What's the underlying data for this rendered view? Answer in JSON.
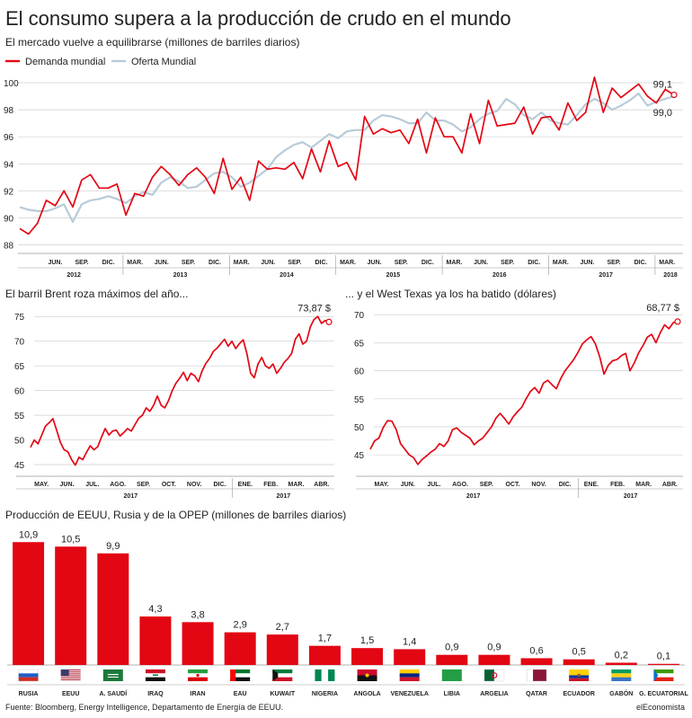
{
  "header": {
    "title": "El consumo supera a la producción de crudo en el mundo",
    "subtitle": "El mercado vuelve a equilibrarse (millones de barriles diarios)"
  },
  "colors": {
    "red": "#e30613",
    "blue": "#b8cbd8",
    "grid": "#cfcfcf",
    "ink": "#222222"
  },
  "chart_data": [
    {
      "type": "line",
      "subtitle": "El mercado vuelve a equilibrarse (millones de barriles diarios)",
      "yticks": [
        88,
        90,
        92,
        94,
        96,
        98,
        100
      ],
      "ylim": [
        87.5,
        100.8
      ],
      "x_month_labels": [
        "JUN.",
        "SEP.",
        "DIC.",
        "MAR.",
        "JUN.",
        "SEP.",
        "DIC.",
        "MAR.",
        "JUN.",
        "SEP.",
        "DIC.",
        "MAR.",
        "JUN.",
        "SEP.",
        "DIC.",
        "MAR.",
        "JUN.",
        "SEP.",
        "DIC.",
        "MAR.",
        "JUN.",
        "SEP.",
        "DIC.",
        "MAR."
      ],
      "x_year_labels": [
        "2012",
        "2013",
        "2014",
        "2015",
        "2016",
        "2017",
        "2018"
      ],
      "series": [
        {
          "name": "Demanda mundial",
          "color": "#e30613",
          "values": [
            89.2,
            88.8,
            89.6,
            91.3,
            90.9,
            92.0,
            90.8,
            92.8,
            93.2,
            92.2,
            92.2,
            92.5,
            90.2,
            91.8,
            91.6,
            93.0,
            93.8,
            93.2,
            92.4,
            93.2,
            93.7,
            93.0,
            91.8,
            94.4,
            92.1,
            93.0,
            91.3,
            94.2,
            93.6,
            93.7,
            93.6,
            94.1,
            92.9,
            95.1,
            93.4,
            95.7,
            93.8,
            94.1,
            92.8,
            97.5,
            96.2,
            96.6,
            96.3,
            96.5,
            95.5,
            97.3,
            94.8,
            97.4,
            96.0,
            96.0,
            94.8,
            97.7,
            95.5,
            98.7,
            96.8,
            96.9,
            97.0,
            98.2,
            96.2,
            97.4,
            97.5,
            96.5,
            98.5,
            97.2,
            97.8,
            100.4,
            97.8,
            99.6,
            98.9,
            99.4,
            99.9,
            99.0,
            98.5,
            99.5,
            99.1
          ],
          "end_label": "99,1"
        },
        {
          "name": "Oferta Mundial",
          "color": "#b8cbd8",
          "values": [
            90.8,
            90.6,
            90.5,
            90.5,
            90.7,
            91.0,
            89.7,
            91.0,
            91.3,
            91.4,
            91.6,
            91.4,
            91.1,
            91.6,
            91.9,
            91.7,
            92.6,
            93.0,
            92.7,
            92.2,
            92.3,
            92.8,
            93.3,
            93.4,
            93.0,
            92.3,
            92.6,
            93.1,
            93.6,
            94.5,
            95.0,
            95.4,
            95.6,
            95.2,
            95.7,
            96.2,
            95.9,
            96.4,
            96.5,
            96.5,
            97.2,
            97.6,
            97.5,
            97.3,
            97.0,
            97.0,
            97.8,
            97.2,
            97.2,
            96.9,
            96.4,
            96.7,
            97.3,
            97.7,
            97.9,
            98.8,
            98.4,
            97.6,
            97.3,
            97.8,
            97.2,
            97.0,
            96.9,
            97.6,
            98.4,
            98.8,
            98.5,
            98.0,
            98.3,
            98.7,
            99.2,
            98.3,
            98.6,
            98.8,
            99.0
          ],
          "end_label": "99,0"
        }
      ]
    },
    {
      "type": "line",
      "title": "El barril Brent roza máximos del año...",
      "yticks": [
        45,
        50,
        55,
        60,
        65,
        70,
        75
      ],
      "ylim": [
        43,
        76.5
      ],
      "x_labels": [
        "MAY.",
        "JUN.",
        "JUL.",
        "AGO.",
        "SEP.",
        "OCT.",
        "NOV.",
        "DIC.",
        "ENE.",
        "FEB.",
        "MAR.",
        "ABR."
      ],
      "year_labels": [
        "2017",
        "2017"
      ],
      "series": [
        {
          "name": "Brent",
          "color": "#e30613",
          "values": [
            48.5,
            50.0,
            49.2,
            51.0,
            52.8,
            53.5,
            54.3,
            52.0,
            49.5,
            48.0,
            47.6,
            46.0,
            44.9,
            46.5,
            46.0,
            47.5,
            48.8,
            48.0,
            48.6,
            50.5,
            52.3,
            51.0,
            51.8,
            52.0,
            50.8,
            51.5,
            52.3,
            51.8,
            53.1,
            54.4,
            55.0,
            56.5,
            55.8,
            57.0,
            58.9,
            57.0,
            56.5,
            58.0,
            60.0,
            61.5,
            62.5,
            63.7,
            62.0,
            63.5,
            63.0,
            61.8,
            64.0,
            65.5,
            66.5,
            67.9,
            68.6,
            69.5,
            70.4,
            69.0,
            70.0,
            68.5,
            69.5,
            70.3,
            67.5,
            63.5,
            62.6,
            65.4,
            66.7,
            65.0,
            64.5,
            65.4,
            63.5,
            64.5,
            65.7,
            66.5,
            67.5,
            70.4,
            71.5,
            69.4,
            70.0,
            72.9,
            74.4,
            75.0,
            73.6,
            74.2,
            73.9
          ],
          "end_label": "73,87 $"
        }
      ]
    },
    {
      "type": "line",
      "title": "... y el West Texas ya los ha batido (dólares)",
      "yticks": [
        45,
        50,
        55,
        60,
        65,
        70
      ],
      "ylim": [
        41.5,
        71
      ],
      "x_labels": [
        "MAY.",
        "JUN.",
        "JUL.",
        "AGO.",
        "SEP.",
        "OCT.",
        "NOV.",
        "DIC.",
        "ENE.",
        "FEB.",
        "MAR.",
        "ABR."
      ],
      "year_labels": [
        "2017",
        "2017"
      ],
      "series": [
        {
          "name": "West Texas",
          "color": "#e30613",
          "values": [
            46.0,
            47.5,
            48.0,
            49.9,
            51.1,
            51.0,
            49.5,
            47.0,
            46.0,
            45.0,
            44.5,
            43.3,
            44.2,
            44.8,
            45.5,
            46.0,
            47.0,
            46.5,
            47.5,
            49.5,
            49.8,
            49.0,
            48.5,
            48.0,
            46.8,
            47.5,
            48.0,
            49.0,
            50.0,
            51.5,
            52.4,
            51.5,
            50.5,
            51.8,
            52.7,
            53.5,
            55.0,
            56.3,
            57.0,
            56.0,
            57.8,
            58.3,
            57.5,
            56.8,
            58.6,
            60.0,
            61.0,
            62.0,
            63.3,
            64.8,
            65.5,
            66.1,
            64.8,
            62.5,
            59.4,
            61.0,
            61.8,
            62.0,
            62.7,
            63.1,
            60.0,
            61.4,
            63.2,
            64.5,
            66.0,
            66.5,
            65.0,
            66.8,
            68.2,
            67.5,
            68.6,
            68.77
          ],
          "end_label": "68,77 $"
        }
      ]
    },
    {
      "type": "bar",
      "title": "Producción de EEUU, Rusia y de la OPEP (millones de barriles diarios)",
      "categories": [
        "RUSIA",
        "EEUU",
        "A. SAUDÍ",
        "IRAQ",
        "IRAN",
        "EAU",
        "KUWAIT",
        "NIGERIA",
        "ANGOLA",
        "VENEZUELA",
        "LIBIA",
        "ARGELIA",
        "QATAR",
        "ECUADOR",
        "GABÓN",
        "G. ECUATORIAL"
      ],
      "values": [
        10.9,
        10.5,
        9.9,
        4.3,
        3.8,
        2.9,
        2.7,
        1.7,
        1.5,
        1.4,
        0.9,
        0.9,
        0.6,
        0.5,
        0.2,
        0.1
      ],
      "value_labels": [
        "10,9",
        "10,5",
        "9,9",
        "4,3",
        "3,8",
        "2,9",
        "2,7",
        "1,7",
        "1,5",
        "1,4",
        "0,9",
        "0,9",
        "0,6",
        "0,5",
        "0,2",
        "0,1"
      ],
      "flag_icons": [
        "flag-russia-icon",
        "flag-usa-icon",
        "flag-saudi-arabia-icon",
        "flag-iraq-icon",
        "flag-iran-icon",
        "flag-uae-icon",
        "flag-kuwait-icon",
        "flag-nigeria-icon",
        "flag-angola-icon",
        "flag-venezuela-icon",
        "flag-libya-icon",
        "flag-algeria-icon",
        "flag-qatar-icon",
        "flag-ecuador-icon",
        "flag-gabon-icon",
        "flag-equatorial-guinea-icon"
      ]
    }
  ],
  "footer": {
    "source": "Fuente: Bloomberg, Energy Intelligence, Departamento de Energía de EEUU.",
    "brand": "elEconomista"
  }
}
